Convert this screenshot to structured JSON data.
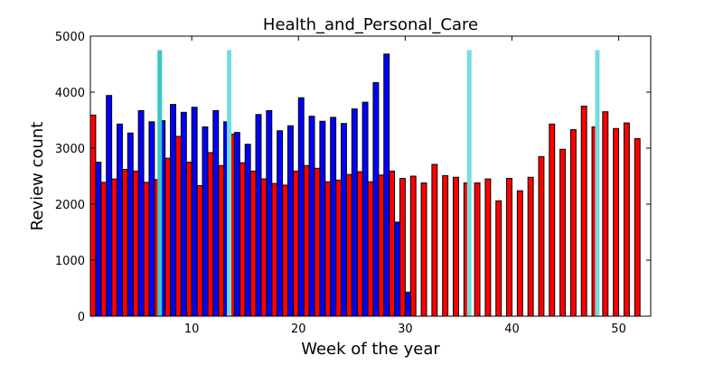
{
  "chart_data": {
    "type": "bar",
    "title": "Health_and_Personal_Care",
    "xlabel": "Week of the year",
    "ylabel": "Review count",
    "xlim": [
      0.5,
      53
    ],
    "ylim": [
      0,
      5000
    ],
    "xticks": [
      10,
      20,
      30,
      40,
      50
    ],
    "yticks": [
      0,
      1000,
      2000,
      3000,
      4000,
      5000
    ],
    "grid": false,
    "legend": "none",
    "series": [
      {
        "color": "#ff0000",
        "x": [
          1,
          2,
          3,
          4,
          5,
          6,
          7,
          8,
          9,
          10,
          11,
          12,
          13,
          14,
          15,
          16,
          17,
          18,
          19,
          20,
          21,
          22,
          23,
          24,
          25,
          26,
          27,
          28,
          29,
          30,
          31,
          32,
          33,
          34,
          35,
          36,
          37,
          38,
          39,
          40,
          41,
          42,
          43,
          44,
          45,
          46,
          47,
          48,
          49,
          50,
          51,
          52
        ],
        "values": [
          3590,
          2390,
          2450,
          2620,
          2590,
          2390,
          2440,
          2820,
          3210,
          2750,
          2330,
          2920,
          2690,
          3250,
          2740,
          2590,
          2450,
          2370,
          2340,
          2590,
          2690,
          2640,
          2400,
          2430,
          2530,
          2580,
          2400,
          2520,
          2590,
          2460,
          2500,
          2380,
          2710,
          2510,
          2480,
          2380,
          2380,
          2450,
          2060,
          2460,
          2240,
          2480,
          2850,
          3430,
          2980,
          3330,
          3750,
          3380,
          3650,
          3350,
          3450,
          3170
        ]
      },
      {
        "color": "#0000ff",
        "x": [
          1,
          2,
          3,
          4,
          5,
          6,
          7,
          8,
          9,
          10,
          11,
          12,
          13,
          14,
          15,
          16,
          17,
          18,
          19,
          20,
          21,
          22,
          23,
          24,
          25,
          26,
          27,
          28,
          29,
          30
        ],
        "values": [
          2750,
          3940,
          3430,
          3270,
          3670,
          3470,
          3490,
          3780,
          3640,
          3730,
          3380,
          3670,
          3470,
          3280,
          3070,
          3600,
          3670,
          3310,
          3400,
          3900,
          3570,
          3480,
          3550,
          3440,
          3700,
          3820,
          4170,
          4680,
          1680,
          430
        ]
      }
    ],
    "vertical_markers": [
      {
        "x": 7.0,
        "color": "#36c8c8"
      },
      {
        "x": 13.5,
        "color": "#74dede"
      },
      {
        "x": 36.0,
        "color": "#74dede"
      },
      {
        "x": 48.0,
        "color": "#74dede"
      }
    ]
  }
}
